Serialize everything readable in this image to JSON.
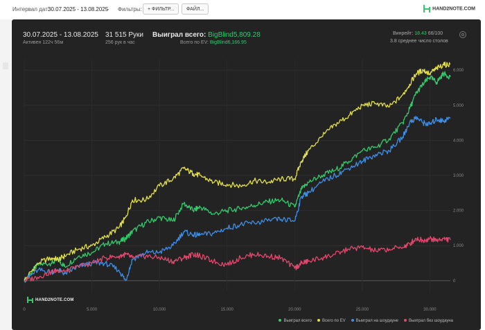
{
  "toolbar": {
    "interval_label": "Интервал дат:",
    "interval_value": "30.07.2025 - 13.08.2025",
    "filters_label": "Фильтры:",
    "filter_button": "+ ФИЛЬТР...",
    "file_button": "ФАЙЛ...",
    "brand": "HAND2NOTE.COM"
  },
  "summary": {
    "date_range": "30.07.2025 - 13.08.2025",
    "active": "Активен 122ч 56м",
    "hands": "31 515 Руки",
    "hands_per_hour": "256 рук в час",
    "won_total_label": "Выиграл всего:",
    "won_total_value": "BigBlind5,809.28",
    "ev_label": "Всего по EV:",
    "ev_value": "BigBlind6,166.95",
    "winrate_label": "Винрейт:",
    "winrate_value": "18.43",
    "winrate_suffix": "66/100",
    "avg_tables": "3.8 среднее число столов"
  },
  "watermark": "HAND2NOTE.COM",
  "colors": {
    "won_total": "#35c96b",
    "ev": "#e3e04a",
    "showdown": "#3d8fe8",
    "non_showdown": "#e2486e"
  },
  "chart_data": {
    "type": "line",
    "xlim": [
      0,
      31515
    ],
    "ylim": [
      -300,
      6300
    ],
    "x_ticks": [
      0,
      5000,
      10000,
      15000,
      20000,
      25000,
      30000
    ],
    "x_tick_labels": [
      "0",
      "5.000",
      "10.000",
      "15.000",
      "20.000",
      "25.000",
      "30.000"
    ],
    "y_ticks": [
      0,
      1000,
      2000,
      3000,
      4000,
      5000,
      6000
    ],
    "y_tick_labels": [
      "0",
      "1.000",
      "2.000",
      "3.000",
      "4.000",
      "5.000",
      "6.000"
    ],
    "grid": true,
    "legend_position": "bottom-right",
    "x": [
      0,
      1000,
      2000,
      2500,
      3000,
      4000,
      5000,
      6000,
      7000,
      7500,
      8000,
      9000,
      10000,
      11000,
      11800,
      12500,
      13000,
      14000,
      15000,
      16000,
      17000,
      18000,
      19000,
      20000,
      20500,
      21000,
      22000,
      23000,
      24000,
      25000,
      26000,
      27000,
      28000,
      28500,
      29000,
      29500,
      30000,
      30500,
      31000,
      31515
    ],
    "series": [
      {
        "name": "Выиграл всего",
        "color": "#35c96b",
        "values": [
          0,
          450,
          500,
          600,
          400,
          700,
          800,
          1050,
          1100,
          1200,
          1400,
          1650,
          1800,
          1700,
          2200,
          2000,
          2100,
          1900,
          2000,
          2050,
          2150,
          2250,
          2300,
          2100,
          2600,
          2800,
          3000,
          3150,
          3400,
          3700,
          3800,
          4050,
          4500,
          4900,
          5350,
          5600,
          5800,
          5650,
          5900,
          5809
        ]
      },
      {
        "name": "Всего по EV",
        "color": "#e3e04a",
        "values": [
          0,
          500,
          650,
          600,
          700,
          900,
          1000,
          1250,
          1500,
          1800,
          2300,
          2300,
          2700,
          2900,
          3200,
          3050,
          3000,
          2800,
          2750,
          2700,
          2850,
          2800,
          2900,
          2900,
          3400,
          3700,
          4100,
          4450,
          4700,
          5000,
          5050,
          4950,
          5300,
          5600,
          5900,
          6000,
          5900,
          6050,
          6150,
          6167
        ]
      },
      {
        "name": "Выиграл на шоудауне",
        "color": "#3d8fe8",
        "values": [
          0,
          300,
          250,
          300,
          200,
          400,
          500,
          500,
          300,
          0,
          600,
          800,
          800,
          1000,
          1400,
          1300,
          1300,
          1350,
          1500,
          1600,
          1650,
          1700,
          1750,
          1700,
          2400,
          2500,
          2800,
          3000,
          3200,
          3400,
          3600,
          3700,
          4100,
          4500,
          4650,
          4500,
          4450,
          4600,
          4550,
          4650
        ]
      },
      {
        "name": "Выиграл без шоудауна",
        "color": "#e2486e",
        "values": [
          0,
          100,
          250,
          300,
          250,
          400,
          500,
          650,
          700,
          750,
          650,
          700,
          650,
          550,
          650,
          750,
          700,
          550,
          450,
          650,
          750,
          700,
          650,
          350,
          500,
          550,
          650,
          750,
          900,
          950,
          850,
          900,
          950,
          1050,
          1200,
          1150,
          1200,
          1150,
          1200,
          1159
        ]
      }
    ]
  }
}
